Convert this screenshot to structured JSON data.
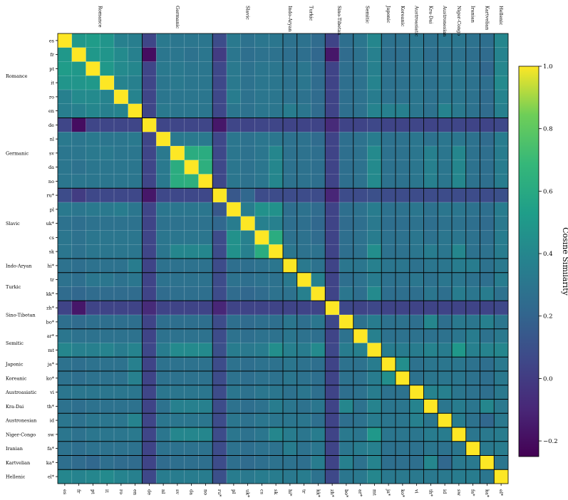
{
  "chart_data": {
    "type": "heatmap",
    "title": "",
    "xlabel": "",
    "ylabel": "",
    "colorbar": {
      "label": "Cosine Similarity",
      "range": [
        -0.25,
        1.0
      ],
      "ticks": [
        -0.2,
        0.0,
        0.2,
        0.4,
        0.6,
        0.8,
        1.0
      ],
      "tick_labels": [
        "−0.2",
        "0.0",
        "0.2",
        "0.4",
        "0.6",
        "0.8",
        "1.0"
      ],
      "colormap": "viridis"
    },
    "languages": [
      "es",
      "fr",
      "pt",
      "it",
      "ro",
      "en",
      "de",
      "nl",
      "sv",
      "da",
      "no",
      "ru*",
      "pl",
      "uk*",
      "cs",
      "sk",
      "hi*",
      "tr",
      "kk*",
      "zh*",
      "bo*",
      "ar*",
      "mt",
      "ja*",
      "ko*",
      "vi",
      "th*",
      "id",
      "sw",
      "fa*",
      "ka*",
      "el*"
    ],
    "families": [
      {
        "name": "Romance",
        "start": 0,
        "end": 5
      },
      {
        "name": "Germanic",
        "start": 6,
        "end": 10
      },
      {
        "name": "Slavic",
        "start": 11,
        "end": 15
      },
      {
        "name": "Indo-Aryan",
        "start": 16,
        "end": 16
      },
      {
        "name": "Turkic",
        "start": 17,
        "end": 18
      },
      {
        "name": "Sino-Tibetan",
        "start": 19,
        "end": 20
      },
      {
        "name": "Semitic",
        "start": 21,
        "end": 22
      },
      {
        "name": "Japonic",
        "start": 23,
        "end": 23
      },
      {
        "name": "Koreanic",
        "start": 24,
        "end": 24
      },
      {
        "name": "Austroasiatic",
        "start": 25,
        "end": 25
      },
      {
        "name": "Kra-Dai",
        "start": 26,
        "end": 26
      },
      {
        "name": "Austronesian",
        "start": 27,
        "end": 27
      },
      {
        "name": "Niger-Congo",
        "start": 28,
        "end": 28
      },
      {
        "name": "Iranian",
        "start": 29,
        "end": 29
      },
      {
        "name": "Kartvelian",
        "start": 30,
        "end": 30
      },
      {
        "name": "Hellenic",
        "start": 31,
        "end": 31
      }
    ],
    "matrix": [
      [
        1.0,
        0.5,
        0.52,
        0.48,
        0.36,
        0.35,
        0.05,
        0.32,
        0.3,
        0.3,
        0.3,
        0.08,
        0.32,
        0.28,
        0.3,
        0.3,
        0.28,
        0.28,
        0.24,
        0.04,
        0.26,
        0.3,
        0.4,
        0.28,
        0.28,
        0.3,
        0.28,
        0.3,
        0.3,
        0.28,
        0.26,
        0.4
      ],
      [
        0.5,
        1.0,
        0.5,
        0.48,
        0.42,
        0.36,
        -0.2,
        0.3,
        0.3,
        0.28,
        0.3,
        0.0,
        0.3,
        0.26,
        0.28,
        0.28,
        0.26,
        0.26,
        0.22,
        -0.16,
        0.24,
        0.28,
        0.36,
        0.26,
        0.26,
        0.3,
        0.26,
        0.28,
        0.28,
        0.26,
        0.24,
        0.38
      ],
      [
        0.52,
        0.5,
        1.0,
        0.5,
        0.42,
        0.4,
        0.05,
        0.32,
        0.32,
        0.3,
        0.3,
        0.06,
        0.32,
        0.28,
        0.3,
        0.3,
        0.28,
        0.3,
        0.24,
        0.04,
        0.26,
        0.28,
        0.36,
        0.28,
        0.28,
        0.3,
        0.28,
        0.3,
        0.3,
        0.28,
        0.22,
        0.4
      ],
      [
        0.48,
        0.48,
        0.5,
        1.0,
        0.38,
        0.36,
        0.05,
        0.3,
        0.32,
        0.3,
        0.3,
        0.06,
        0.32,
        0.28,
        0.3,
        0.3,
        0.28,
        0.3,
        0.24,
        0.04,
        0.26,
        0.28,
        0.38,
        0.28,
        0.28,
        0.3,
        0.28,
        0.3,
        0.3,
        0.28,
        0.26,
        0.42
      ],
      [
        0.36,
        0.42,
        0.42,
        0.38,
        1.0,
        0.38,
        0.05,
        0.3,
        0.3,
        0.3,
        0.3,
        0.06,
        0.34,
        0.28,
        0.3,
        0.3,
        0.28,
        0.28,
        0.24,
        0.04,
        0.26,
        0.28,
        0.34,
        0.28,
        0.28,
        0.3,
        0.28,
        0.3,
        0.3,
        0.28,
        0.24,
        0.38
      ],
      [
        0.35,
        0.36,
        0.4,
        0.36,
        0.38,
        1.0,
        0.05,
        0.32,
        0.3,
        0.3,
        0.3,
        0.06,
        0.3,
        0.28,
        0.3,
        0.3,
        0.34,
        0.3,
        0.24,
        0.04,
        0.26,
        0.28,
        0.38,
        0.36,
        0.36,
        0.3,
        0.28,
        0.38,
        0.32,
        0.28,
        0.24,
        0.36
      ],
      [
        0.05,
        -0.2,
        0.05,
        0.05,
        0.05,
        0.05,
        1.0,
        0.05,
        0.05,
        0.05,
        0.05,
        -0.16,
        0.05,
        0.04,
        0.05,
        0.05,
        0.04,
        0.04,
        0.04,
        -0.08,
        0.04,
        0.04,
        0.06,
        0.04,
        0.04,
        0.05,
        0.04,
        0.05,
        0.05,
        0.04,
        0.04,
        0.06
      ],
      [
        0.32,
        0.3,
        0.32,
        0.3,
        0.3,
        0.32,
        0.05,
        1.0,
        0.32,
        0.32,
        0.32,
        0.06,
        0.3,
        0.28,
        0.3,
        0.3,
        0.28,
        0.28,
        0.24,
        0.04,
        0.26,
        0.28,
        0.34,
        0.28,
        0.28,
        0.3,
        0.28,
        0.3,
        0.3,
        0.28,
        0.24,
        0.34
      ],
      [
        0.3,
        0.3,
        0.32,
        0.32,
        0.3,
        0.3,
        0.05,
        0.32,
        1.0,
        0.62,
        0.62,
        0.06,
        0.3,
        0.28,
        0.3,
        0.4,
        0.28,
        0.28,
        0.26,
        0.04,
        0.26,
        0.28,
        0.42,
        0.28,
        0.28,
        0.3,
        0.36,
        0.3,
        0.4,
        0.28,
        0.26,
        0.34
      ],
      [
        0.3,
        0.28,
        0.3,
        0.3,
        0.3,
        0.3,
        0.05,
        0.32,
        0.62,
        1.0,
        0.64,
        0.06,
        0.3,
        0.28,
        0.3,
        0.4,
        0.28,
        0.28,
        0.26,
        0.04,
        0.26,
        0.28,
        0.42,
        0.28,
        0.28,
        0.3,
        0.36,
        0.3,
        0.4,
        0.28,
        0.26,
        0.34
      ],
      [
        0.3,
        0.3,
        0.3,
        0.3,
        0.3,
        0.3,
        0.05,
        0.32,
        0.62,
        0.64,
        1.0,
        0.06,
        0.3,
        0.28,
        0.3,
        0.4,
        0.28,
        0.28,
        0.26,
        0.04,
        0.26,
        0.28,
        0.42,
        0.28,
        0.28,
        0.3,
        0.36,
        0.3,
        0.4,
        0.28,
        0.26,
        0.34
      ],
      [
        0.08,
        0.0,
        0.06,
        0.06,
        0.06,
        0.06,
        -0.16,
        0.06,
        0.06,
        0.06,
        0.06,
        1.0,
        0.14,
        0.22,
        0.08,
        0.08,
        0.08,
        0.08,
        0.08,
        -0.1,
        0.08,
        0.08,
        0.1,
        0.08,
        0.08,
        0.08,
        0.08,
        0.08,
        0.08,
        0.08,
        0.08,
        0.1
      ],
      [
        0.32,
        0.3,
        0.32,
        0.32,
        0.34,
        0.3,
        0.05,
        0.3,
        0.3,
        0.3,
        0.3,
        0.14,
        1.0,
        0.34,
        0.46,
        0.46,
        0.26,
        0.28,
        0.24,
        0.04,
        0.26,
        0.28,
        0.34,
        0.28,
        0.28,
        0.3,
        0.28,
        0.3,
        0.3,
        0.28,
        0.26,
        0.34
      ],
      [
        0.28,
        0.26,
        0.28,
        0.28,
        0.28,
        0.28,
        0.04,
        0.28,
        0.28,
        0.28,
        0.28,
        0.22,
        0.34,
        1.0,
        0.36,
        0.36,
        0.26,
        0.26,
        0.22,
        0.04,
        0.24,
        0.26,
        0.32,
        0.26,
        0.26,
        0.28,
        0.26,
        0.28,
        0.28,
        0.26,
        0.24,
        0.32
      ],
      [
        0.3,
        0.28,
        0.3,
        0.3,
        0.3,
        0.3,
        0.05,
        0.3,
        0.3,
        0.3,
        0.3,
        0.08,
        0.46,
        0.36,
        1.0,
        0.62,
        0.28,
        0.28,
        0.24,
        0.04,
        0.26,
        0.28,
        0.34,
        0.28,
        0.28,
        0.3,
        0.28,
        0.3,
        0.3,
        0.28,
        0.26,
        0.34
      ],
      [
        0.3,
        0.28,
        0.3,
        0.3,
        0.3,
        0.3,
        0.05,
        0.3,
        0.4,
        0.4,
        0.4,
        0.08,
        0.46,
        0.36,
        0.62,
        1.0,
        0.3,
        0.28,
        0.28,
        0.04,
        0.26,
        0.28,
        0.44,
        0.28,
        0.28,
        0.3,
        0.34,
        0.3,
        0.4,
        0.28,
        0.28,
        0.34
      ],
      [
        0.28,
        0.26,
        0.28,
        0.28,
        0.28,
        0.34,
        0.04,
        0.28,
        0.28,
        0.28,
        0.28,
        0.08,
        0.26,
        0.26,
        0.28,
        0.3,
        1.0,
        0.32,
        0.28,
        0.04,
        0.3,
        0.3,
        0.36,
        0.3,
        0.3,
        0.28,
        0.3,
        0.3,
        0.34,
        0.34,
        0.28,
        0.32
      ],
      [
        0.28,
        0.26,
        0.3,
        0.3,
        0.28,
        0.3,
        0.04,
        0.28,
        0.28,
        0.28,
        0.28,
        0.08,
        0.28,
        0.26,
        0.28,
        0.28,
        0.32,
        1.0,
        0.36,
        0.04,
        0.26,
        0.28,
        0.34,
        0.28,
        0.28,
        0.3,
        0.28,
        0.3,
        0.3,
        0.28,
        0.26,
        0.34
      ],
      [
        0.24,
        0.22,
        0.24,
        0.24,
        0.24,
        0.24,
        0.04,
        0.24,
        0.26,
        0.26,
        0.26,
        0.08,
        0.24,
        0.22,
        0.24,
        0.28,
        0.28,
        0.36,
        1.0,
        0.04,
        0.3,
        0.26,
        0.42,
        0.26,
        0.26,
        0.26,
        0.3,
        0.26,
        0.34,
        0.3,
        0.34,
        0.28
      ],
      [
        0.04,
        -0.16,
        0.04,
        0.04,
        0.04,
        0.04,
        -0.08,
        0.04,
        0.04,
        0.04,
        0.04,
        -0.1,
        0.04,
        0.04,
        0.04,
        0.04,
        0.04,
        0.04,
        0.04,
        1.0,
        0.06,
        0.04,
        0.06,
        0.04,
        0.04,
        0.04,
        0.04,
        0.04,
        0.04,
        0.04,
        0.04,
        0.06
      ],
      [
        0.26,
        0.24,
        0.26,
        0.26,
        0.26,
        0.26,
        0.04,
        0.26,
        0.26,
        0.26,
        0.26,
        0.08,
        0.26,
        0.24,
        0.26,
        0.26,
        0.3,
        0.26,
        0.3,
        0.06,
        1.0,
        0.28,
        0.34,
        0.28,
        0.28,
        0.26,
        0.4,
        0.26,
        0.32,
        0.3,
        0.36,
        0.3
      ],
      [
        0.3,
        0.28,
        0.28,
        0.28,
        0.28,
        0.28,
        0.04,
        0.28,
        0.28,
        0.28,
        0.28,
        0.08,
        0.28,
        0.26,
        0.28,
        0.28,
        0.3,
        0.28,
        0.26,
        0.04,
        0.28,
        1.0,
        0.36,
        0.28,
        0.28,
        0.28,
        0.28,
        0.28,
        0.3,
        0.34,
        0.28,
        0.32
      ],
      [
        0.4,
        0.36,
        0.36,
        0.38,
        0.34,
        0.38,
        0.06,
        0.34,
        0.42,
        0.42,
        0.42,
        0.1,
        0.34,
        0.32,
        0.34,
        0.44,
        0.36,
        0.34,
        0.42,
        0.06,
        0.34,
        0.36,
        1.0,
        0.34,
        0.34,
        0.34,
        0.38,
        0.34,
        0.5,
        0.36,
        0.38,
        0.4
      ],
      [
        0.28,
        0.26,
        0.28,
        0.28,
        0.28,
        0.36,
        0.04,
        0.28,
        0.28,
        0.28,
        0.28,
        0.08,
        0.28,
        0.26,
        0.28,
        0.28,
        0.3,
        0.28,
        0.26,
        0.04,
        0.28,
        0.28,
        0.34,
        1.0,
        0.44,
        0.28,
        0.3,
        0.3,
        0.3,
        0.28,
        0.26,
        0.32
      ],
      [
        0.28,
        0.26,
        0.28,
        0.28,
        0.28,
        0.36,
        0.04,
        0.28,
        0.28,
        0.28,
        0.28,
        0.08,
        0.28,
        0.26,
        0.28,
        0.28,
        0.3,
        0.28,
        0.26,
        0.04,
        0.28,
        0.28,
        0.34,
        0.44,
        1.0,
        0.28,
        0.3,
        0.3,
        0.3,
        0.28,
        0.26,
        0.32
      ],
      [
        0.3,
        0.3,
        0.3,
        0.3,
        0.3,
        0.3,
        0.05,
        0.3,
        0.3,
        0.3,
        0.3,
        0.08,
        0.3,
        0.28,
        0.3,
        0.3,
        0.28,
        0.3,
        0.26,
        0.04,
        0.26,
        0.28,
        0.34,
        0.28,
        0.28,
        1.0,
        0.38,
        0.36,
        0.3,
        0.28,
        0.26,
        0.32
      ],
      [
        0.28,
        0.26,
        0.28,
        0.28,
        0.28,
        0.28,
        0.04,
        0.28,
        0.36,
        0.36,
        0.36,
        0.08,
        0.28,
        0.26,
        0.28,
        0.34,
        0.3,
        0.28,
        0.3,
        0.04,
        0.4,
        0.28,
        0.38,
        0.3,
        0.3,
        0.38,
        1.0,
        0.3,
        0.34,
        0.3,
        0.4,
        0.32
      ],
      [
        0.3,
        0.28,
        0.3,
        0.3,
        0.3,
        0.38,
        0.05,
        0.3,
        0.3,
        0.3,
        0.3,
        0.08,
        0.3,
        0.28,
        0.3,
        0.3,
        0.3,
        0.3,
        0.26,
        0.04,
        0.26,
        0.28,
        0.34,
        0.3,
        0.3,
        0.36,
        0.3,
        1.0,
        0.34,
        0.28,
        0.22,
        0.32
      ],
      [
        0.3,
        0.28,
        0.3,
        0.3,
        0.3,
        0.32,
        0.05,
        0.3,
        0.4,
        0.4,
        0.4,
        0.08,
        0.3,
        0.28,
        0.3,
        0.4,
        0.34,
        0.3,
        0.34,
        0.04,
        0.32,
        0.3,
        0.5,
        0.3,
        0.3,
        0.3,
        0.34,
        0.34,
        1.0,
        0.3,
        0.32,
        0.34
      ],
      [
        0.28,
        0.26,
        0.28,
        0.28,
        0.28,
        0.28,
        0.04,
        0.28,
        0.28,
        0.28,
        0.28,
        0.08,
        0.28,
        0.26,
        0.28,
        0.28,
        0.34,
        0.28,
        0.3,
        0.04,
        0.3,
        0.34,
        0.36,
        0.28,
        0.28,
        0.28,
        0.3,
        0.28,
        0.3,
        1.0,
        0.32,
        0.34
      ],
      [
        0.26,
        0.24,
        0.22,
        0.26,
        0.24,
        0.24,
        0.04,
        0.24,
        0.26,
        0.26,
        0.26,
        0.08,
        0.26,
        0.24,
        0.26,
        0.28,
        0.28,
        0.26,
        0.34,
        0.04,
        0.36,
        0.28,
        0.38,
        0.26,
        0.26,
        0.26,
        0.4,
        0.22,
        0.32,
        0.32,
        1.0,
        0.3
      ],
      [
        0.4,
        0.38,
        0.4,
        0.42,
        0.38,
        0.36,
        0.06,
        0.34,
        0.34,
        0.34,
        0.34,
        0.1,
        0.34,
        0.32,
        0.34,
        0.34,
        0.32,
        0.34,
        0.28,
        0.06,
        0.3,
        0.32,
        0.4,
        0.32,
        0.32,
        0.32,
        0.32,
        0.32,
        0.34,
        0.34,
        0.3,
        1.0
      ]
    ]
  }
}
